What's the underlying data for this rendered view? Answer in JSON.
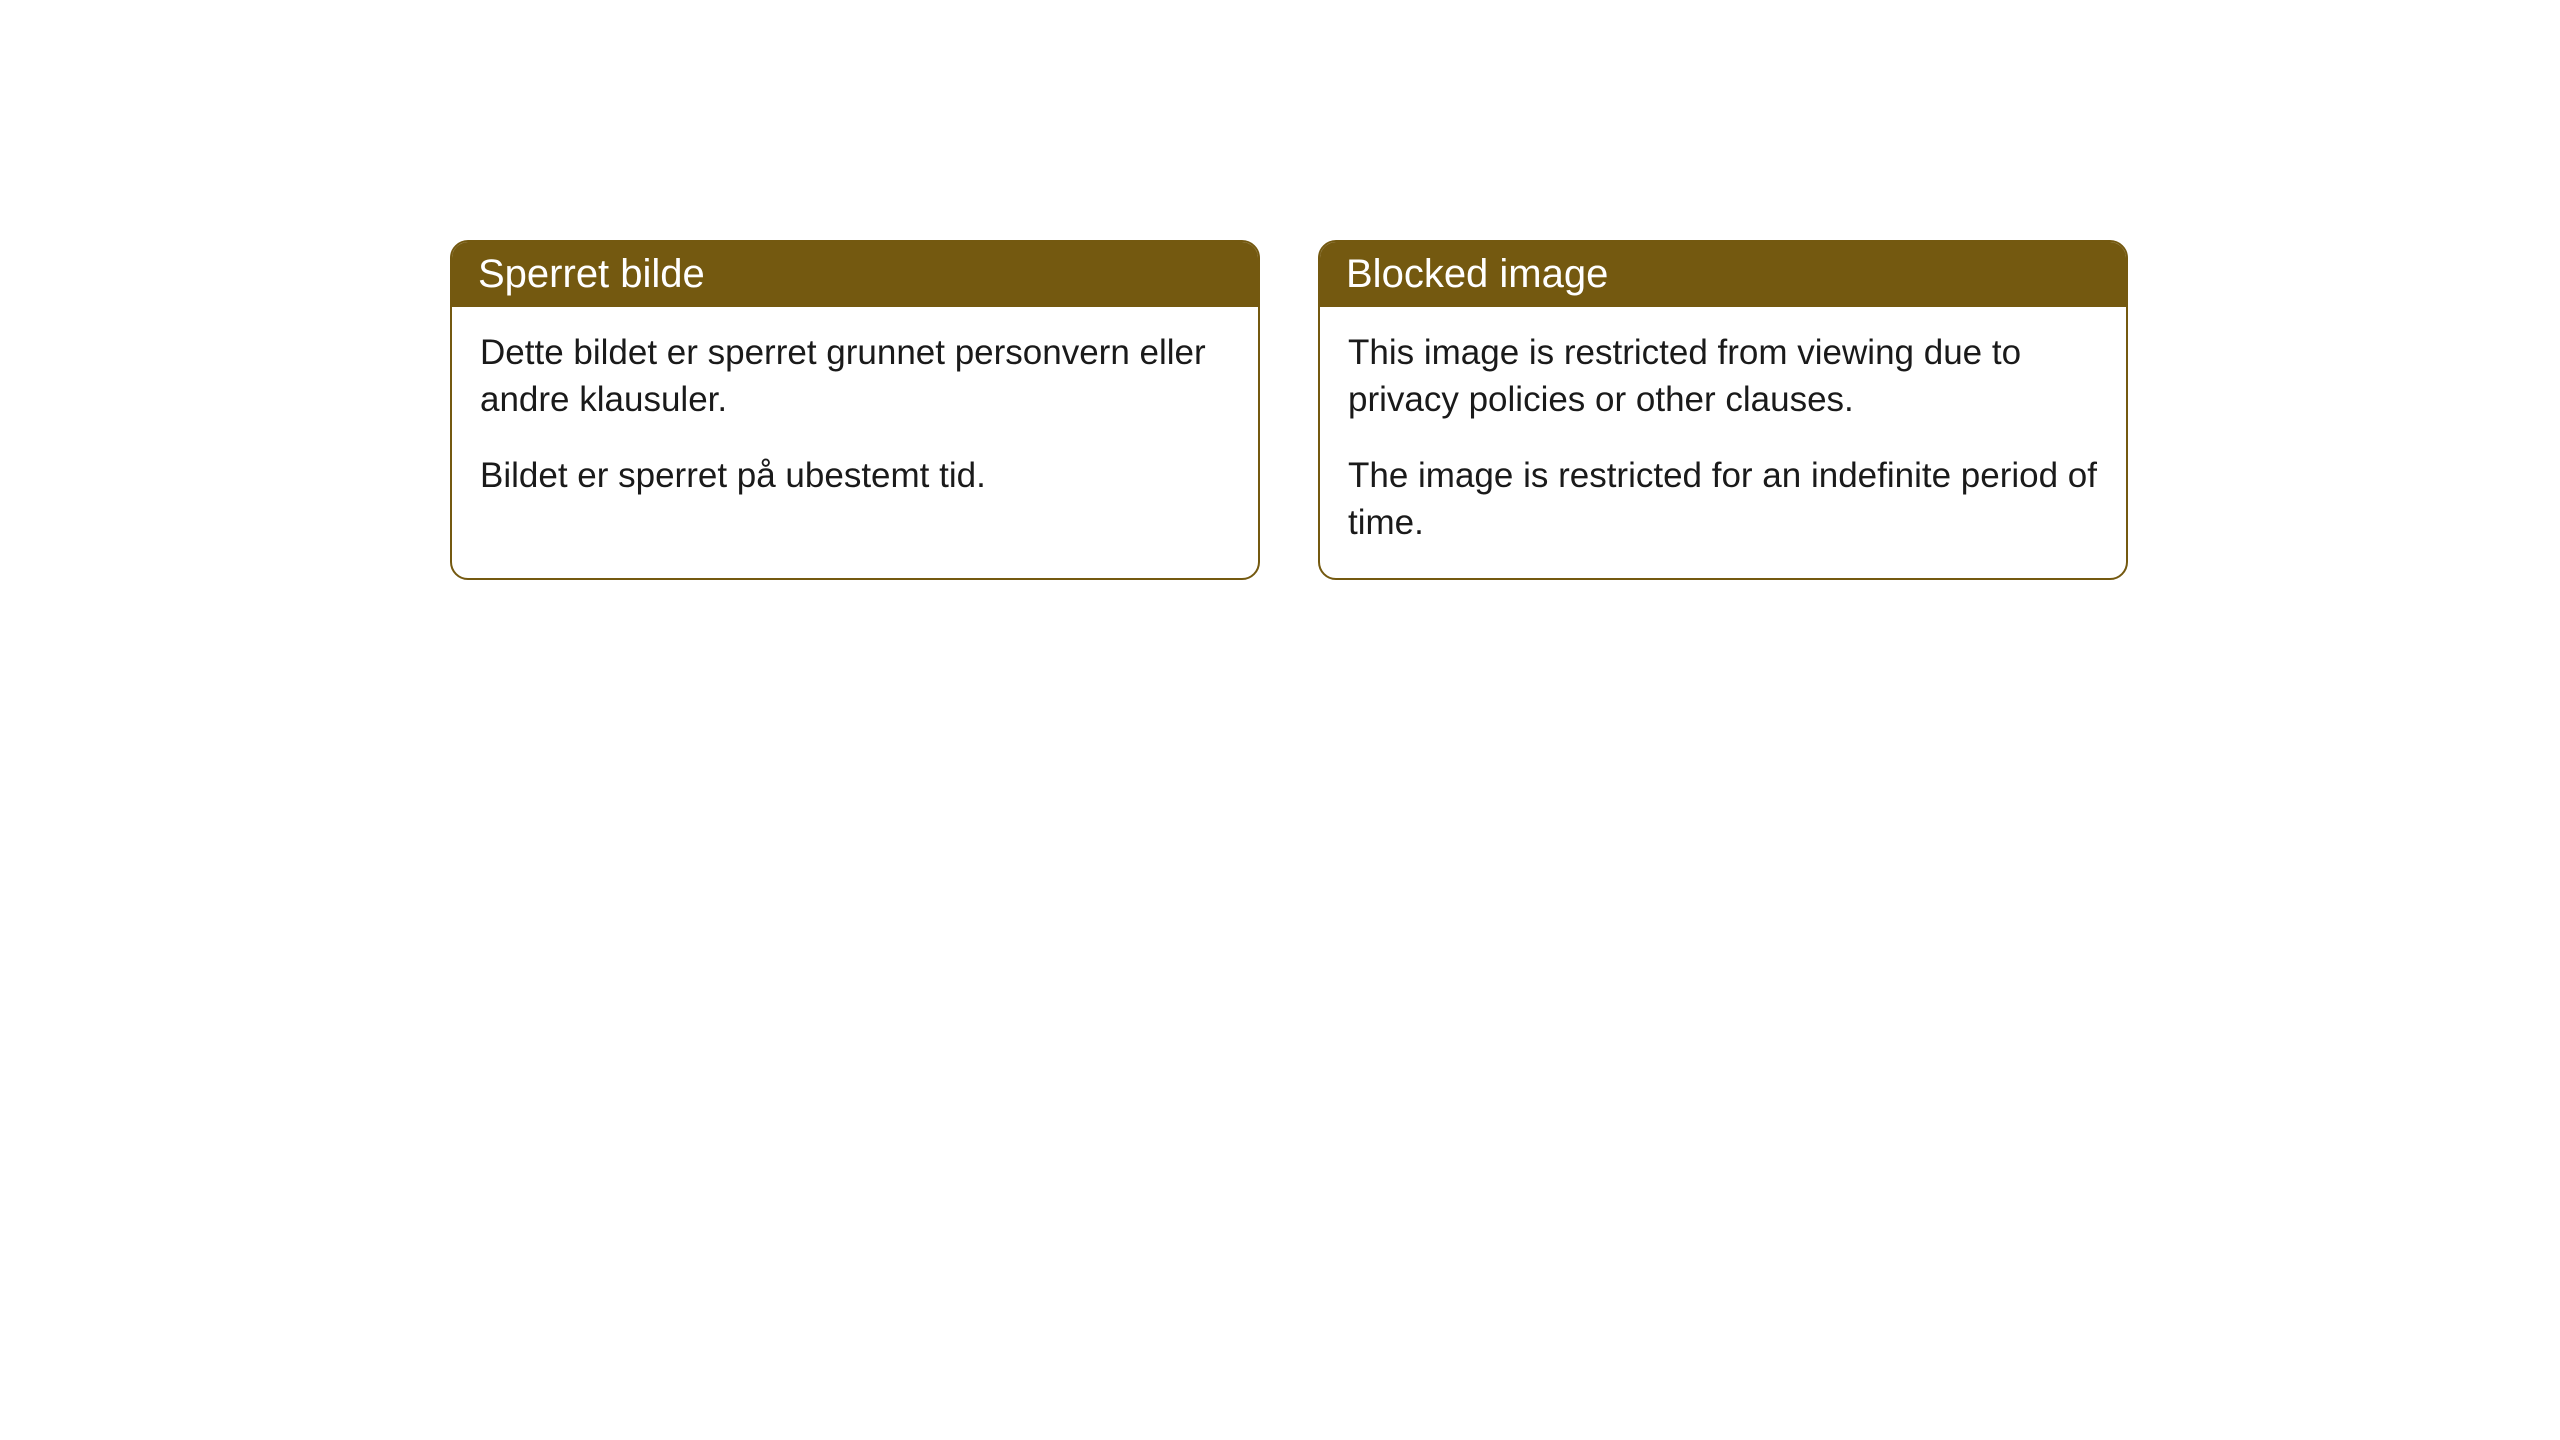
{
  "cards": [
    {
      "title": "Sperret bilde",
      "paragraph1": "Dette bildet er sperret grunnet personvern eller andre klausuler.",
      "paragraph2": "Bildet er sperret på ubestemt tid."
    },
    {
      "title": "Blocked image",
      "paragraph1": "This image is restricted from viewing due to privacy policies or other clauses.",
      "paragraph2": "The image is restricted for an indefinite period of time."
    }
  ],
  "styling": {
    "header_background": "#745910",
    "header_text_color": "#ffffff",
    "border_color": "#745910",
    "body_background": "#ffffff",
    "body_text_color": "#1a1a1a",
    "border_radius": 18,
    "title_fontsize": 40,
    "body_fontsize": 35
  }
}
